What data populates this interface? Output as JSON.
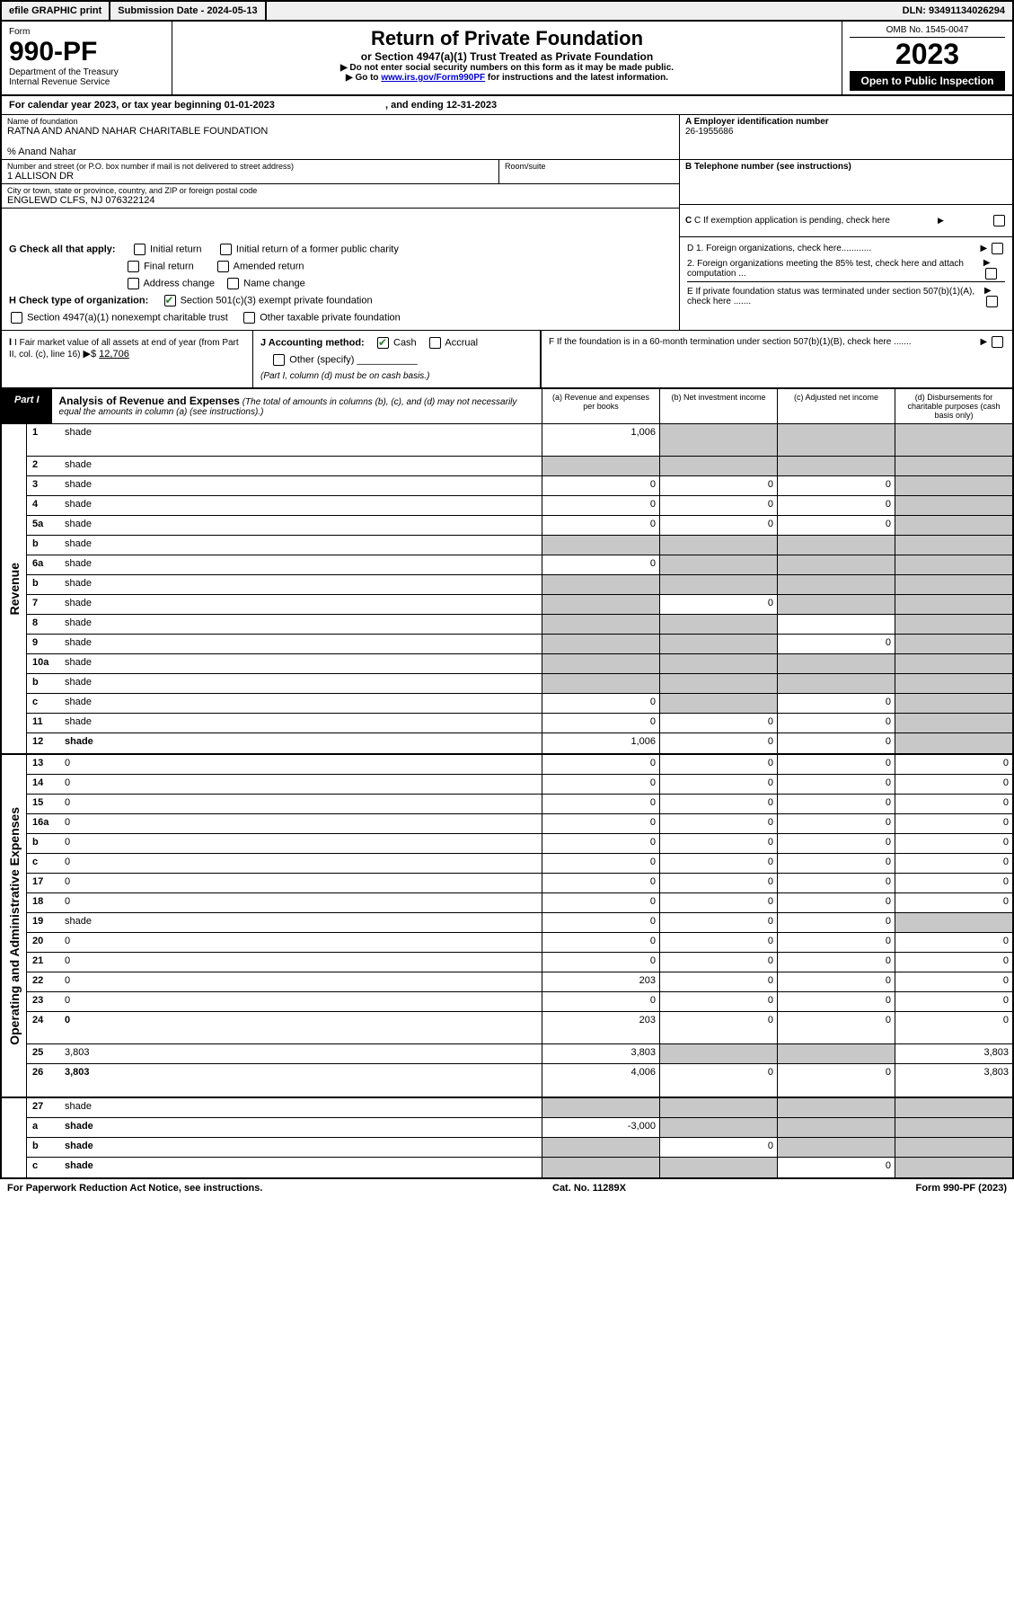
{
  "topbar": {
    "efile": "efile GRAPHIC print",
    "submission": "Submission Date - 2024-05-13",
    "dln": "DLN: 93491134026294"
  },
  "header": {
    "form_label": "Form",
    "form_number": "990-PF",
    "dept": "Department of the Treasury",
    "irs": "Internal Revenue Service",
    "title": "Return of Private Foundation",
    "subtitle": "or Section 4947(a)(1) Trust Treated as Private Foundation",
    "note1": "▶ Do not enter social security numbers on this form as it may be made public.",
    "note2_pre": "▶ Go to ",
    "note2_link": "www.irs.gov/Form990PF",
    "note2_post": " for instructions and the latest information.",
    "omb": "OMB No. 1545-0047",
    "year": "2023",
    "open": "Open to Public Inspection"
  },
  "calyear": {
    "text": "For calendar year 2023, or tax year beginning 01-01-2023",
    "ending": ", and ending 12-31-2023"
  },
  "info": {
    "name_label": "Name of foundation",
    "name": "RATNA AND ANAND NAHAR CHARITABLE FOUNDATION",
    "care_of": "% Anand Nahar",
    "addr_label": "Number and street (or P.O. box number if mail is not delivered to street address)",
    "addr": "1 ALLISON DR",
    "room_label": "Room/suite",
    "city_label": "City or town, state or province, country, and ZIP or foreign postal code",
    "city": "ENGLEWD CLFS, NJ  076322124",
    "a_label": "A Employer identification number",
    "a_value": "26-1955686",
    "b_label": "B Telephone number (see instructions)",
    "c_label": "C If exemption application is pending, check here",
    "d1_label": "D 1. Foreign organizations, check here............",
    "d2_label": "2. Foreign organizations meeting the 85% test, check here and attach computation ...",
    "e_label": "E   If private foundation status was terminated under section 507(b)(1)(A), check here .......",
    "f_label": "F   If the foundation is in a 60-month termination under section 507(b)(1)(B), check here .......",
    "g_label": "G Check all that apply:",
    "g_opts": [
      "Initial return",
      "Initial return of a former public charity",
      "Final return",
      "Amended return",
      "Address change",
      "Name change"
    ],
    "h_label": "H Check type of organization:",
    "h_opts": [
      "Section 501(c)(3) exempt private foundation",
      "Section 4947(a)(1) nonexempt charitable trust",
      "Other taxable private foundation"
    ],
    "i_label": "I Fair market value of all assets at end of year (from Part II, col. (c), line 16)",
    "i_value": "12,706",
    "j_label": "J Accounting method:",
    "j_opts": [
      "Cash",
      "Accrual"
    ],
    "j_other": "Other (specify)",
    "j_note": "(Part I, column (d) must be on cash basis.)"
  },
  "part1": {
    "label": "Part I",
    "title": "Analysis of Revenue and Expenses",
    "title_note": " (The total of amounts in columns (b), (c), and (d) may not necessarily equal the amounts in column (a) (see instructions).)",
    "cols": {
      "a": "(a) Revenue and expenses per books",
      "b": "(b) Net investment income",
      "c": "(c) Adjusted net income",
      "d": "(d) Disbursements for charitable purposes (cash basis only)"
    }
  },
  "sections": {
    "revenue": "Revenue",
    "expenses": "Operating and Administrative Expenses"
  },
  "rows": [
    {
      "n": "1",
      "d": "shade",
      "a": "1,006",
      "b": "shade",
      "c": "shade",
      "tall": true
    },
    {
      "n": "2",
      "d": "shade",
      "a": "shade",
      "b": "shade",
      "c": "shade",
      "checked": true
    },
    {
      "n": "3",
      "d": "shade",
      "a": "0",
      "b": "0",
      "c": "0"
    },
    {
      "n": "4",
      "d": "shade",
      "a": "0",
      "b": "0",
      "c": "0"
    },
    {
      "n": "5a",
      "d": "shade",
      "a": "0",
      "b": "0",
      "c": "0"
    },
    {
      "n": "b",
      "d": "shade",
      "a": "shade",
      "b": "shade",
      "c": "shade"
    },
    {
      "n": "6a",
      "d": "shade",
      "a": "0",
      "b": "shade",
      "c": "shade"
    },
    {
      "n": "b",
      "d": "shade",
      "a": "shade",
      "b": "shade",
      "c": "shade"
    },
    {
      "n": "7",
      "d": "shade",
      "a": "shade",
      "b": "0",
      "c": "shade"
    },
    {
      "n": "8",
      "d": "shade",
      "a": "shade",
      "b": "shade",
      "c": ""
    },
    {
      "n": "9",
      "d": "shade",
      "a": "shade",
      "b": "shade",
      "c": "0"
    },
    {
      "n": "10a",
      "d": "shade",
      "a": "shade",
      "b": "shade",
      "c": "shade"
    },
    {
      "n": "b",
      "d": "shade",
      "a": "shade",
      "b": "shade",
      "c": "shade"
    },
    {
      "n": "c",
      "d": "shade",
      "a": "0",
      "b": "shade",
      "c": "0"
    },
    {
      "n": "11",
      "d": "shade",
      "a": "0",
      "b": "0",
      "c": "0"
    },
    {
      "n": "12",
      "d": "shade",
      "a": "1,006",
      "b": "0",
      "c": "0",
      "bold": true
    }
  ],
  "exp_rows": [
    {
      "n": "13",
      "d": "0",
      "a": "0",
      "b": "0",
      "c": "0"
    },
    {
      "n": "14",
      "d": "0",
      "a": "0",
      "b": "0",
      "c": "0"
    },
    {
      "n": "15",
      "d": "0",
      "a": "0",
      "b": "0",
      "c": "0"
    },
    {
      "n": "16a",
      "d": "0",
      "a": "0",
      "b": "0",
      "c": "0"
    },
    {
      "n": "b",
      "d": "0",
      "a": "0",
      "b": "0",
      "c": "0"
    },
    {
      "n": "c",
      "d": "0",
      "a": "0",
      "b": "0",
      "c": "0"
    },
    {
      "n": "17",
      "d": "0",
      "a": "0",
      "b": "0",
      "c": "0"
    },
    {
      "n": "18",
      "d": "0",
      "a": "0",
      "b": "0",
      "c": "0"
    },
    {
      "n": "19",
      "d": "shade",
      "a": "0",
      "b": "0",
      "c": "0"
    },
    {
      "n": "20",
      "d": "0",
      "a": "0",
      "b": "0",
      "c": "0"
    },
    {
      "n": "21",
      "d": "0",
      "a": "0",
      "b": "0",
      "c": "0"
    },
    {
      "n": "22",
      "d": "0",
      "a": "203",
      "b": "0",
      "c": "0"
    },
    {
      "n": "23",
      "d": "0",
      "a": "0",
      "b": "0",
      "c": "0"
    },
    {
      "n": "24",
      "d": "0",
      "a": "203",
      "b": "0",
      "c": "0",
      "bold": true,
      "tall": true
    },
    {
      "n": "25",
      "d": "3,803",
      "a": "3,803",
      "b": "shade",
      "c": "shade"
    },
    {
      "n": "26",
      "d": "3,803",
      "a": "4,006",
      "b": "0",
      "c": "0",
      "bold": true,
      "tall": true
    }
  ],
  "bottom_rows": [
    {
      "n": "27",
      "d": "shade",
      "a": "shade",
      "b": "shade",
      "c": "shade"
    },
    {
      "n": "a",
      "d": "shade",
      "a": "-3,000",
      "b": "shade",
      "c": "shade",
      "bold": true
    },
    {
      "n": "b",
      "d": "shade",
      "a": "shade",
      "b": "0",
      "c": "shade",
      "bold": true
    },
    {
      "n": "c",
      "d": "shade",
      "a": "shade",
      "b": "shade",
      "c": "0",
      "bold": true
    }
  ],
  "footer": {
    "left": "For Paperwork Reduction Act Notice, see instructions.",
    "center": "Cat. No. 11289X",
    "right": "Form 990-PF (2023)"
  },
  "colors": {
    "shade": "#c8c8c8",
    "link": "#0000cc",
    "check": "#2e7d32"
  }
}
